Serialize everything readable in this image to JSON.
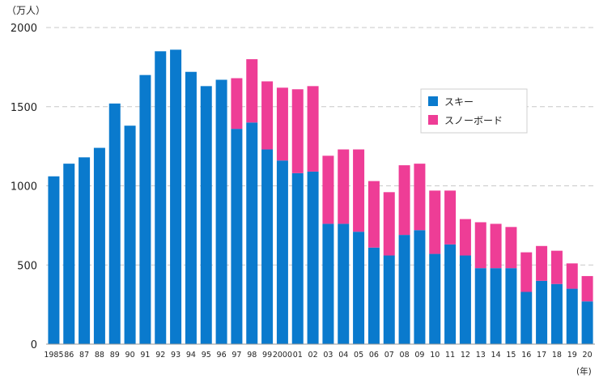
{
  "chart_data": {
    "type": "bar",
    "stacked": true,
    "title": "",
    "y_unit_label": "（万人）",
    "x_unit_label": "(年)",
    "ylim": [
      0,
      2000
    ],
    "yticks": [
      "0",
      "500",
      "1000",
      "1500",
      "2000"
    ],
    "ytick_values": [
      0,
      500,
      1000,
      1500,
      2000
    ],
    "grid": true,
    "legend_position": "top-right",
    "categories": [
      "1985",
      "86",
      "87",
      "88",
      "89",
      "90",
      "91",
      "92",
      "93",
      "94",
      "95",
      "96",
      "97",
      "98",
      "99",
      "2000",
      "01",
      "02",
      "03",
      "04",
      "05",
      "06",
      "07",
      "08",
      "09",
      "10",
      "11",
      "12",
      "13",
      "14",
      "15",
      "16",
      "17",
      "18",
      "19",
      "20"
    ],
    "series": [
      {
        "name": "スキー",
        "color": "#0a7acd",
        "values": [
          1060,
          1140,
          1180,
          1240,
          1520,
          1380,
          1700,
          1850,
          1860,
          1720,
          1630,
          1670,
          1360,
          1400,
          1230,
          1160,
          1080,
          1090,
          760,
          760,
          710,
          610,
          560,
          690,
          720,
          570,
          630,
          560,
          480,
          480,
          480,
          330,
          400,
          380,
          350,
          270
        ]
      },
      {
        "name": "スノーボード",
        "color": "#ee3d96",
        "values": [
          0,
          0,
          0,
          0,
          0,
          0,
          0,
          0,
          0,
          0,
          0,
          0,
          320,
          400,
          430,
          460,
          530,
          540,
          430,
          470,
          520,
          420,
          400,
          440,
          420,
          400,
          340,
          230,
          290,
          280,
          260,
          250,
          220,
          210,
          160,
          160
        ]
      }
    ]
  }
}
